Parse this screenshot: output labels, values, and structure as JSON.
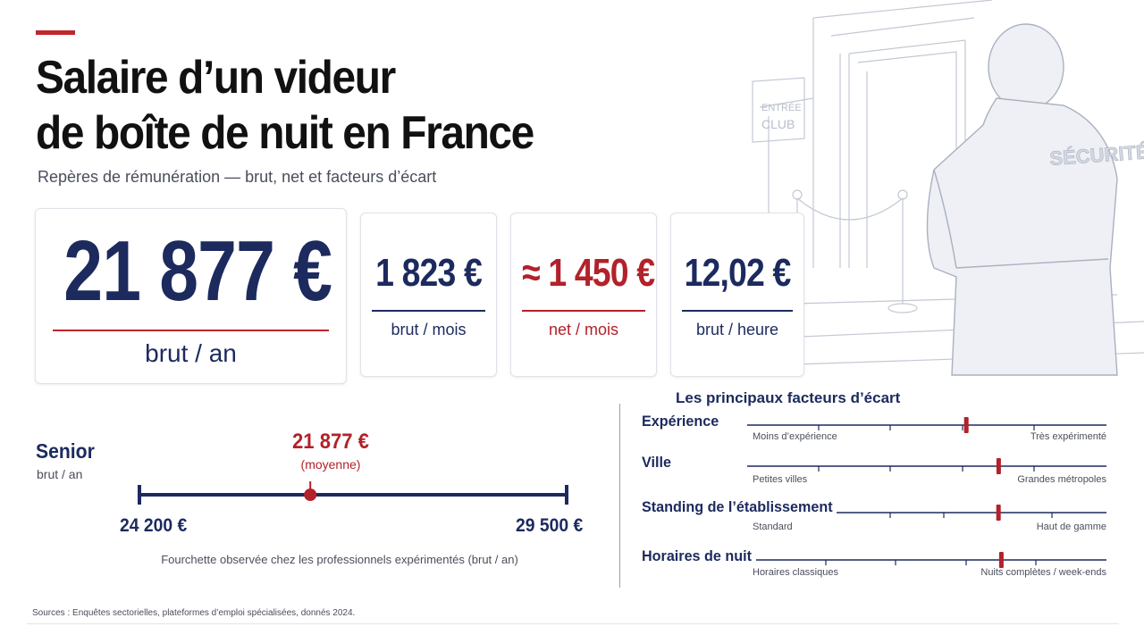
{
  "header": {
    "title_line1": "Salaire d’un videur",
    "title_line2": "de boîte de nuit en France",
    "subtitle": "Repères de rémunération — brut, net et facteurs d’écart"
  },
  "cards": {
    "annual": {
      "value": "21 877 €",
      "label": "brut / an"
    },
    "monthly": {
      "value": "1 823 €",
      "label": "brut / mois"
    },
    "net": {
      "value": "≈ 1 450 €",
      "label": "net / mois"
    },
    "hourly": {
      "value": "12,02 €",
      "label": "brut / heure"
    }
  },
  "illustration": {
    "sign_line1": "ENTRÉE",
    "sign_line2": "CLUB",
    "jacket_text": "SÉCURITÉ"
  },
  "range": {
    "title": "Senior",
    "subtitle": "brut / an",
    "average_value": "21 877 €",
    "average_label": "(moyenne)",
    "average_position": 0.4,
    "min": "24 200 €",
    "max": "29 500 €",
    "caption": "Fourchette observée chez les professionnels expérimentés (brut / an)"
  },
  "factors": {
    "title": "Les principaux facteurs d’écart",
    "items": [
      {
        "name": "Expérience",
        "min_label": "Moins d’expérience",
        "max_label": "Très expérimenté",
        "level": 0.61
      },
      {
        "name": "Ville",
        "min_label": "Petites villes",
        "max_label": "Grandes métropoles",
        "level": 0.7
      },
      {
        "name": "Standing de l’établissement",
        "min_label": "Standard",
        "max_label": "Haut de gamme",
        "level": 0.6
      },
      {
        "name": "Horaires de nuit",
        "min_label": "Horaires classiques",
        "max_label": "Nuits complètes / week-ends",
        "level": 0.7
      }
    ]
  },
  "sources": "Sources : Enquêtes sectorielles, plateformes d’emploi spécialisées, donnés 2024.",
  "colors": {
    "navy": "#1c2a5e",
    "red": "#b3212a"
  }
}
